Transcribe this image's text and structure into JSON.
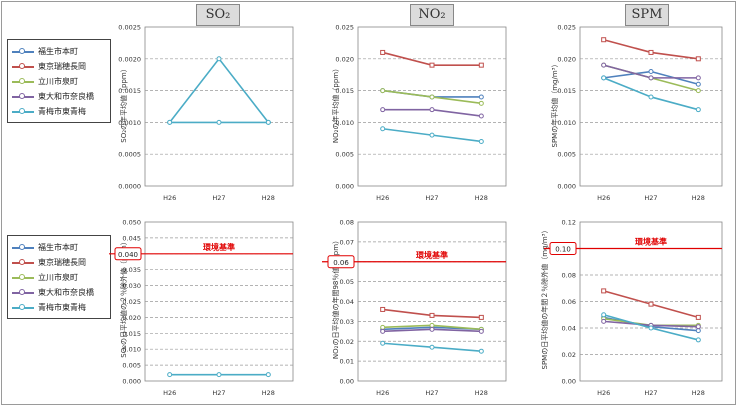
{
  "headers": {
    "so2": "SO₂",
    "no2": "NO₂",
    "spm": "SPM"
  },
  "legend": {
    "items": [
      {
        "label": "福生市本町",
        "color": "#4f81bd"
      },
      {
        "label": "東京瑞穂長岡",
        "color": "#c0504d"
      },
      {
        "label": "立川市泉町",
        "color": "#9bbb59"
      },
      {
        "label": "東大和市奈良橋",
        "color": "#8064a2"
      },
      {
        "label": "青梅市東青梅",
        "color": "#4bacc6"
      }
    ]
  },
  "standard_label": "環境基準",
  "chart_data": [
    {
      "type": "line",
      "id": "so2-annual",
      "ylabel": "SO₂の年平均値（ppm）",
      "x": [
        "H26",
        "H27",
        "H28"
      ],
      "ylim": [
        0,
        0.0025
      ],
      "yticks": [
        "0.0000",
        "0.0005",
        "0.0010",
        "0.0015",
        "0.0020",
        "0.0025"
      ],
      "grid": true,
      "series": [
        {
          "name": "福生市本町",
          "values": [
            null,
            null,
            null
          ]
        },
        {
          "name": "東京瑞穂長岡",
          "values": [
            null,
            null,
            null
          ]
        },
        {
          "name": "立川市泉町",
          "values": [
            null,
            null,
            null
          ]
        },
        {
          "name": "東大和市奈良橋",
          "values": [
            null,
            null,
            null
          ]
        },
        {
          "name": "青梅市東青梅",
          "values": [
            0.001,
            0.002,
            0.001
          ]
        }
      ],
      "extra_lines": [
        {
          "values": [
            0.001,
            0.001,
            0.001
          ],
          "color": "#4bacc6"
        }
      ]
    },
    {
      "type": "line",
      "id": "no2-annual",
      "ylabel": "NO₂の年平均値（ppm）",
      "x": [
        "H26",
        "H27",
        "H28"
      ],
      "ylim": [
        0,
        0.025
      ],
      "yticks": [
        "0.000",
        "0.005",
        "0.010",
        "0.015",
        "0.020",
        "0.025"
      ],
      "grid": true,
      "series": [
        {
          "name": "福生市本町",
          "values": [
            0.015,
            0.014,
            0.014
          ]
        },
        {
          "name": "東京瑞穂長岡",
          "values": [
            0.021,
            0.019,
            0.019
          ]
        },
        {
          "name": "立川市泉町",
          "values": [
            0.015,
            0.014,
            0.013
          ]
        },
        {
          "name": "東大和市奈良橋",
          "values": [
            0.012,
            0.012,
            0.011
          ]
        },
        {
          "name": "青梅市東青梅",
          "values": [
            0.009,
            0.008,
            0.007
          ]
        }
      ]
    },
    {
      "type": "line",
      "id": "spm-annual",
      "ylabel": "SPMの年平均値（mg/m³）",
      "x": [
        "H26",
        "H27",
        "H28"
      ],
      "ylim": [
        0,
        0.025
      ],
      "yticks": [
        "0.000",
        "0.005",
        "0.010",
        "0.015",
        "0.020",
        "0.025"
      ],
      "grid": true,
      "series": [
        {
          "name": "福生市本町",
          "values": [
            0.017,
            0.018,
            0.016
          ]
        },
        {
          "name": "東京瑞穂長岡",
          "values": [
            0.023,
            0.021,
            0.02
          ]
        },
        {
          "name": "立川市泉町",
          "values": [
            0.019,
            0.017,
            0.015
          ]
        },
        {
          "name": "東大和市奈良橋",
          "values": [
            0.019,
            0.017,
            0.017
          ]
        },
        {
          "name": "青梅市東青梅",
          "values": [
            0.017,
            0.014,
            0.012
          ]
        }
      ]
    },
    {
      "type": "line",
      "id": "so2-daily",
      "ylabel": "SO₂の日平均値の２％除外値（ppm）",
      "x": [
        "H26",
        "H27",
        "H28"
      ],
      "ylim": [
        0,
        0.05
      ],
      "yticks": [
        "0.000",
        "0.005",
        "0.010",
        "0.015",
        "0.020",
        "0.025",
        "0.030",
        "0.035",
        "0.040",
        "0.045",
        "0.050"
      ],
      "grid": true,
      "standard": {
        "value": 0.04,
        "label": "0.040"
      },
      "series": [
        {
          "name": "福生市本町",
          "values": [
            null,
            null,
            null
          ]
        },
        {
          "name": "東京瑞穂長岡",
          "values": [
            null,
            null,
            null
          ]
        },
        {
          "name": "立川市泉町",
          "values": [
            null,
            null,
            null
          ]
        },
        {
          "name": "東大和市奈良橋",
          "values": [
            null,
            null,
            null
          ]
        },
        {
          "name": "青梅市東青梅",
          "values": [
            0.002,
            0.002,
            0.002
          ]
        }
      ]
    },
    {
      "type": "line",
      "id": "no2-daily",
      "ylabel": "NO₂の日平均値の年間98％値（ppm）",
      "x": [
        "H26",
        "H27",
        "H28"
      ],
      "ylim": [
        0,
        0.08
      ],
      "yticks": [
        "0.00",
        "0.01",
        "0.02",
        "0.03",
        "0.04",
        "0.05",
        "0.06",
        "0.07",
        "0.08"
      ],
      "grid": true,
      "standard": {
        "value": 0.06,
        "label": "0.06"
      },
      "series": [
        {
          "name": "福生市本町",
          "values": [
            0.026,
            0.027,
            0.026
          ]
        },
        {
          "name": "東京瑞穂長岡",
          "values": [
            0.036,
            0.033,
            0.032
          ]
        },
        {
          "name": "立川市泉町",
          "values": [
            0.027,
            0.028,
            0.026
          ]
        },
        {
          "name": "東大和市奈良橋",
          "values": [
            0.025,
            0.026,
            0.025
          ]
        },
        {
          "name": "青梅市東青梅",
          "values": [
            0.019,
            0.017,
            0.015
          ]
        }
      ]
    },
    {
      "type": "line",
      "id": "spm-daily",
      "ylabel": "SPMの日平均値の年間２％除外値（mg/m³）",
      "x": [
        "H26",
        "H27",
        "H28"
      ],
      "ylim": [
        0,
        0.12
      ],
      "yticks": [
        "0.00",
        "0.02",
        "0.04",
        "0.06",
        "0.08",
        "0.10",
        "0.12"
      ],
      "grid": true,
      "standard": {
        "value": 0.1,
        "label": "0.10"
      },
      "series": [
        {
          "name": "福生市本町",
          "values": [
            0.048,
            0.041,
            0.038
          ]
        },
        {
          "name": "東京瑞穂長岡",
          "values": [
            0.068,
            0.058,
            0.048
          ]
        },
        {
          "name": "立川市泉町",
          "values": [
            0.047,
            0.042,
            0.042
          ]
        },
        {
          "name": "東大和市奈良橋",
          "values": [
            0.045,
            0.042,
            0.041
          ]
        },
        {
          "name": "青梅市東青梅",
          "values": [
            0.05,
            0.04,
            0.031
          ]
        }
      ]
    }
  ]
}
